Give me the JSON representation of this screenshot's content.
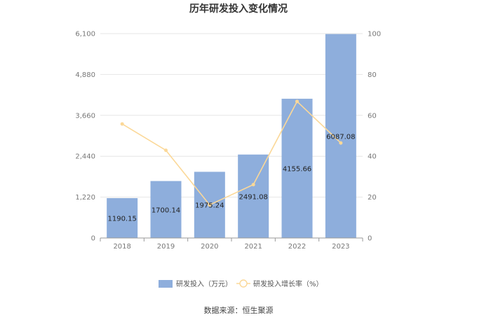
{
  "chart_data": {
    "type": "bar",
    "title": "历年研发投入变化情况",
    "categories": [
      "2018",
      "2019",
      "2020",
      "2021",
      "2022",
      "2023"
    ],
    "series": [
      {
        "name": "研发投入（万元）",
        "type": "bar",
        "axis": "left",
        "color": "#8eaedc",
        "values": [
          1190.15,
          1700.14,
          1975.24,
          2491.08,
          4155.66,
          6087.08
        ],
        "labels": [
          "1190.15",
          "1700.14",
          "1975.24",
          "2491.08",
          "4155.66",
          "6087.08"
        ]
      },
      {
        "name": "研发投入增长率（%）",
        "type": "line",
        "axis": "right",
        "color": "#fbd898",
        "values": [
          55.8,
          42.9,
          16.2,
          26.1,
          66.8,
          46.5
        ]
      }
    ],
    "y_left": {
      "ylim": [
        0,
        6100
      ],
      "ticks": [
        "0",
        "1,220",
        "2,440",
        "3,660",
        "4,880",
        "6,100"
      ]
    },
    "y_right": {
      "ylim": [
        0,
        100
      ],
      "ticks": [
        "0",
        "20",
        "40",
        "60",
        "80",
        "100"
      ]
    },
    "grid": true,
    "legend": "bottom-center"
  },
  "source_text": "数据来源：恒生聚源"
}
